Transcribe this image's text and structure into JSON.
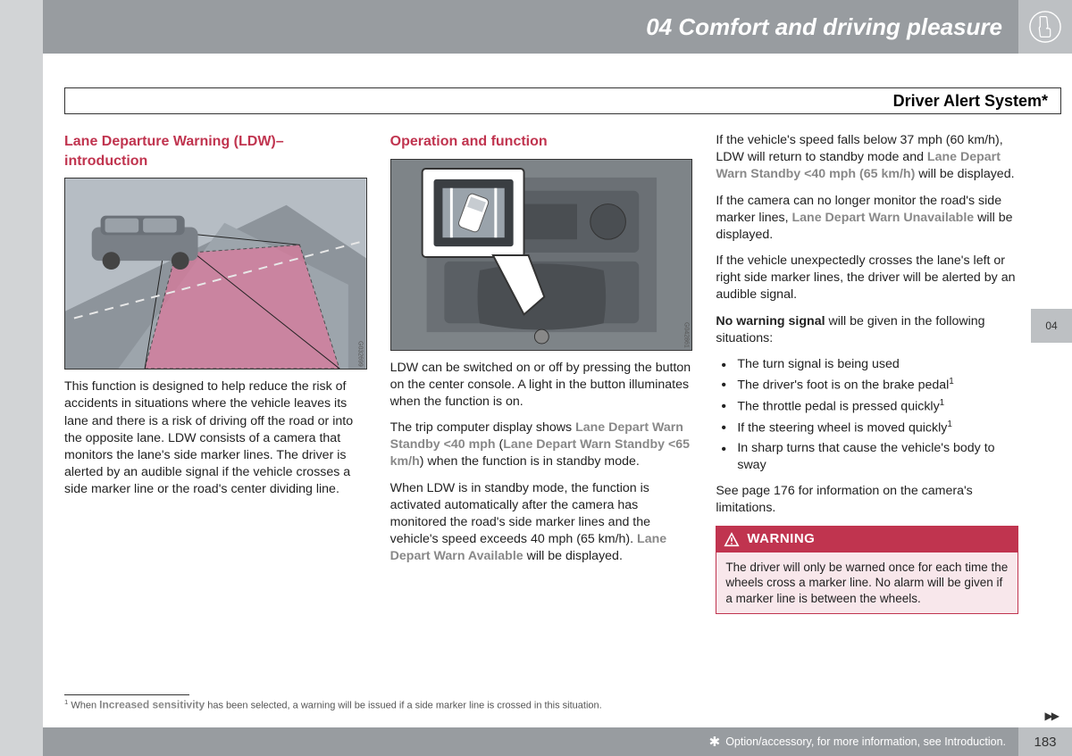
{
  "header": {
    "chapter": "04 Comfort and driving pleasure",
    "subtitle": "Driver Alert System*"
  },
  "sideTab": "04",
  "col1": {
    "heading": "Lane Departure Warning (LDW)– introduction",
    "figCaption": "G032699",
    "p1": "This function is designed to help reduce the risk of accidents in situations where the vehicle leaves its lane and there is a risk of driving off the road or into the opposite lane. LDW consists of a camera that monitors the lane's side marker lines. The driver is alerted by an audible signal if the vehicle crosses a side marker line or the road's center dividing line."
  },
  "col2": {
    "heading": "Operation and function",
    "figCaption": "G042861",
    "p1": "LDW can be switched on or off by pressing the button on the center console. A light in the button illuminates when the function is on.",
    "p2a": "The trip computer display shows ",
    "p2grey1": "Lane Depart Warn Standby <40 mph",
    "p2mid": " (",
    "p2grey2": "Lane Depart Warn Standby <65 km/h",
    "p2b": ") when the function is in standby mode.",
    "p3a": "When LDW is in standby mode, the function is activated automatically after the camera has monitored the road's side marker lines and the vehicle's speed exceeds 40 mph (65 km/h). ",
    "p3grey": "Lane Depart Warn Available",
    "p3b": " will be displayed."
  },
  "col3": {
    "p1a": "If the vehicle's speed falls below 37 mph (60 km/h), LDW will return to standby mode and ",
    "p1grey": "Lane Depart Warn Standby <40 mph (65 km/h)",
    "p1b": " will be displayed.",
    "p2a": "If the camera can no longer monitor the road's side marker lines, ",
    "p2grey": "Lane Depart Warn Unavailable",
    "p2b": " will be displayed.",
    "p3": "If the vehicle unexpectedly crosses the lane's left or right side marker lines, the driver will be alerted by an audible signal.",
    "p4a": "No warning signal",
    "p4b": " will be given in the following situations:",
    "bullets": [
      "The turn signal is being used",
      "The driver's foot is on the brake pedal",
      "The throttle pedal is pressed quickly",
      "If the steering wheel is moved quickly",
      "In sharp turns that cause the vehicle's body to sway"
    ],
    "bulletSup": [
      false,
      true,
      true,
      true,
      false
    ],
    "p5": "See page 176 for information on the camera's limitations.",
    "warningLabel": "WARNING",
    "warningBody": "The driver will only be warned once for each time the wheels cross a marker line. No alarm will be given if a marker line is between the wheels."
  },
  "footnote": {
    "marker": "1",
    "prefix": " When ",
    "bold": "Increased sensitivity",
    "rest": " has been selected, a warning will be issued if a side marker line is crossed in this situation."
  },
  "footer": {
    "text": " Option/accessory, for more information, see Introduction.",
    "pageNum": "183"
  },
  "continueArrow": "▶▶"
}
